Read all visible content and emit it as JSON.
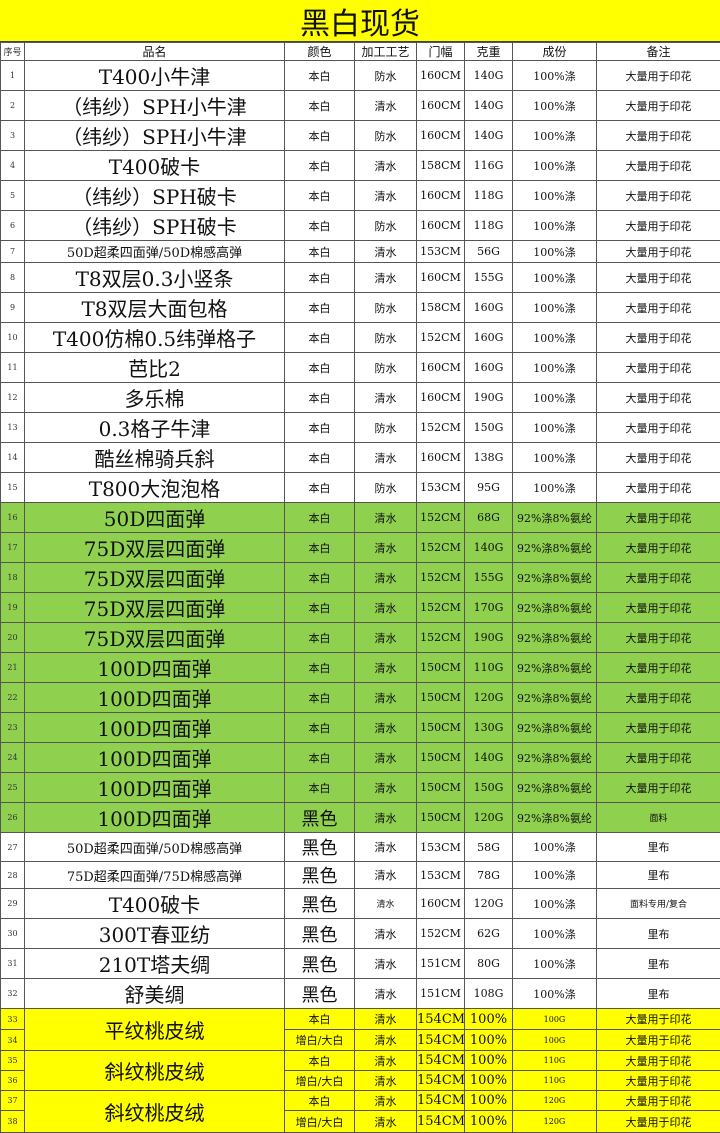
{
  "title": "黑白现货",
  "headers": [
    "序号",
    "品名",
    "颜色",
    "加工工艺",
    "门幅",
    "克重",
    "成份",
    "备注"
  ],
  "colors": {
    "title_bg": "#ffff00",
    "green_rows": "#8fd04f",
    "yellow_rows": "#ffff00"
  },
  "rows": [
    {
      "no": "1",
      "name": "T400小牛津",
      "color": "本白",
      "process": "防水",
      "width": "160CM",
      "weight": "140G",
      "composition": "100%涤",
      "note": "大量用于印花"
    },
    {
      "no": "2",
      "name": "（纬纱）SPH小牛津",
      "color": "本白",
      "process": "清水",
      "width": "160CM",
      "weight": "140G",
      "composition": "100%涤",
      "note": "大量用于印花"
    },
    {
      "no": "3",
      "name": "（纬纱）SPH小牛津",
      "color": "本白",
      "process": "防水",
      "width": "160CM",
      "weight": "140G",
      "composition": "100%涤",
      "note": "大量用于印花"
    },
    {
      "no": "4",
      "name": "T400破卡",
      "color": "本白",
      "process": "清水",
      "width": "158CM",
      "weight": "116G",
      "composition": "100%涤",
      "note": "大量用于印花"
    },
    {
      "no": "5",
      "name": "（纬纱）SPH破卡",
      "color": "本白",
      "process": "清水",
      "width": "160CM",
      "weight": "118G",
      "composition": "100%涤",
      "note": "大量用于印花"
    },
    {
      "no": "6",
      "name": "（纬纱）SPH破卡",
      "color": "本白",
      "process": "防水",
      "width": "160CM",
      "weight": "118G",
      "composition": "100%涤",
      "note": "大量用于印花"
    },
    {
      "no": "7",
      "name": "50D超柔四面弹/50D棉感高弹",
      "color": "本白",
      "process": "清水",
      "width": "153CM",
      "weight": "56G",
      "composition": "100%涤",
      "note": "大量用于印花"
    },
    {
      "no": "8",
      "name": "T8双层0.3小竖条",
      "color": "本白",
      "process": "清水",
      "width": "160CM",
      "weight": "155G",
      "composition": "100%涤",
      "note": "大量用于印花"
    },
    {
      "no": "9",
      "name": "T8双层大面包格",
      "color": "本白",
      "process": "防水",
      "width": "158CM",
      "weight": "160G",
      "composition": "100%涤",
      "note": "大量用于印花"
    },
    {
      "no": "10",
      "name": "T400仿棉0.5纬弹格子",
      "color": "本白",
      "process": "防水",
      "width": "152CM",
      "weight": "160G",
      "composition": "100%涤",
      "note": "大量用于印花"
    },
    {
      "no": "11",
      "name": "芭比2",
      "color": "本白",
      "process": "防水",
      "width": "160CM",
      "weight": "160G",
      "composition": "100%涤",
      "note": "大量用于印花"
    },
    {
      "no": "12",
      "name": "多乐棉",
      "color": "本白",
      "process": "清水",
      "width": "160CM",
      "weight": "190G",
      "composition": "100%涤",
      "note": "大量用于印花"
    },
    {
      "no": "13",
      "name": "0.3格子牛津",
      "color": "本白",
      "process": "防水",
      "width": "152CM",
      "weight": "150G",
      "composition": "100%涤",
      "note": "大量用于印花"
    },
    {
      "no": "14",
      "name": "酷丝棉骑兵斜",
      "color": "本白",
      "process": "清水",
      "width": "160CM",
      "weight": "138G",
      "composition": "100%涤",
      "note": "大量用于印花"
    },
    {
      "no": "15",
      "name": "T800大泡泡格",
      "color": "本白",
      "process": "防水",
      "width": "153CM",
      "weight": "95G",
      "composition": "100%涤",
      "note": "大量用于印花"
    },
    {
      "no": "16",
      "name": "50D四面弹",
      "color": "本白",
      "process": "清水",
      "width": "152CM",
      "weight": "68G",
      "composition": "92%涤8%氨纶",
      "note": "大量用于印花"
    },
    {
      "no": "17",
      "name": "75D双层四面弹",
      "color": "本白",
      "process": "清水",
      "width": "152CM",
      "weight": "140G",
      "composition": "92%涤8%氨纶",
      "note": "大量用于印花"
    },
    {
      "no": "18",
      "name": "75D双层四面弹",
      "color": "本白",
      "process": "清水",
      "width": "152CM",
      "weight": "155G",
      "composition": "92%涤8%氨纶",
      "note": "大量用于印花"
    },
    {
      "no": "19",
      "name": "75D双层四面弹",
      "color": "本白",
      "process": "清水",
      "width": "152CM",
      "weight": "170G",
      "composition": "92%涤8%氨纶",
      "note": "大量用于印花"
    },
    {
      "no": "20",
      "name": "75D双层四面弹",
      "color": "本白",
      "process": "清水",
      "width": "152CM",
      "weight": "190G",
      "composition": "92%涤8%氨纶",
      "note": "大量用于印花"
    },
    {
      "no": "21",
      "name": "100D四面弹",
      "color": "本白",
      "process": "清水",
      "width": "150CM",
      "weight": "110G",
      "composition": "92%涤8%氨纶",
      "note": "大量用于印花"
    },
    {
      "no": "22",
      "name": "100D四面弹",
      "color": "本白",
      "process": "清水",
      "width": "150CM",
      "weight": "120G",
      "composition": "92%涤8%氨纶",
      "note": "大量用于印花"
    },
    {
      "no": "23",
      "name": "100D四面弹",
      "color": "本白",
      "process": "清水",
      "width": "150CM",
      "weight": "130G",
      "composition": "92%涤8%氨纶",
      "note": "大量用于印花"
    },
    {
      "no": "24",
      "name": "100D四面弹",
      "color": "本白",
      "process": "清水",
      "width": "150CM",
      "weight": "140G",
      "composition": "92%涤8%氨纶",
      "note": "大量用于印花"
    },
    {
      "no": "25",
      "name": "100D四面弹",
      "color": "本白",
      "process": "清水",
      "width": "150CM",
      "weight": "150G",
      "composition": "92%涤8%氨纶",
      "note": "大量用于印花"
    },
    {
      "no": "26",
      "name": "100D四面弹",
      "color": "黑色",
      "process": "清水",
      "width": "150CM",
      "weight": "120G",
      "composition": "92%涤8%氨纶",
      "note": "面料"
    },
    {
      "no": "27",
      "name": "50D超柔四面弹/50D棉感高弹",
      "color": "黑色",
      "process": "清水",
      "width": "153CM",
      "weight": "58G",
      "composition": "100%涤",
      "note": "里布"
    },
    {
      "no": "28",
      "name": "75D超柔四面弹/75D棉感高弹",
      "color": "黑色",
      "process": "清水",
      "width": "153CM",
      "weight": "78G",
      "composition": "100%涤",
      "note": "里布"
    },
    {
      "no": "29",
      "name": "T400破卡",
      "color": "黑色",
      "process": "清水",
      "width": "160CM",
      "weight": "120G",
      "composition": "100%涤",
      "note": "面料专用/复合"
    },
    {
      "no": "30",
      "name": "300T春亚纺",
      "color": "黑色",
      "process": "清水",
      "width": "152CM",
      "weight": "62G",
      "composition": "100%涤",
      "note": "里布"
    },
    {
      "no": "31",
      "name": "210T塔夫绸",
      "color": "黑色",
      "process": "清水",
      "width": "151CM",
      "weight": "80G",
      "composition": "100%涤",
      "note": "里布"
    },
    {
      "no": "32",
      "name": "舒美绸",
      "color": "黑色",
      "process": "清水",
      "width": "151CM",
      "weight": "108G",
      "composition": "100%涤",
      "note": "里布"
    },
    {
      "no": "33",
      "name": "平纹桃皮绒",
      "color": "本白",
      "process": "清水",
      "width": "154CM",
      "weight": "100%",
      "composition": "100G",
      "note": "大量用于印花"
    },
    {
      "no": "34",
      "name": "",
      "color": "增白/大白",
      "process": "清水",
      "width": "154CM",
      "weight": "100%",
      "composition": "100G",
      "note": "大量用于印花"
    },
    {
      "no": "35",
      "name": "斜纹桃皮绒",
      "color": "本白",
      "process": "清水",
      "width": "154CM",
      "weight": "100%",
      "composition": "110G",
      "note": "大量用于印花"
    },
    {
      "no": "36",
      "name": "",
      "color": "增白/大白",
      "process": "清水",
      "width": "154CM",
      "weight": "100%",
      "composition": "110G",
      "note": "大量用于印花"
    },
    {
      "no": "37",
      "name": "斜纹桃皮绒",
      "color": "本白",
      "process": "清水",
      "width": "154CM",
      "weight": "100%",
      "composition": "120G",
      "note": "大量用于印花"
    },
    {
      "no": "38",
      "name": "",
      "color": "增白/大白",
      "process": "清水",
      "width": "154CM",
      "weight": "100%",
      "composition": "120G",
      "note": "大量用于印花"
    }
  ]
}
